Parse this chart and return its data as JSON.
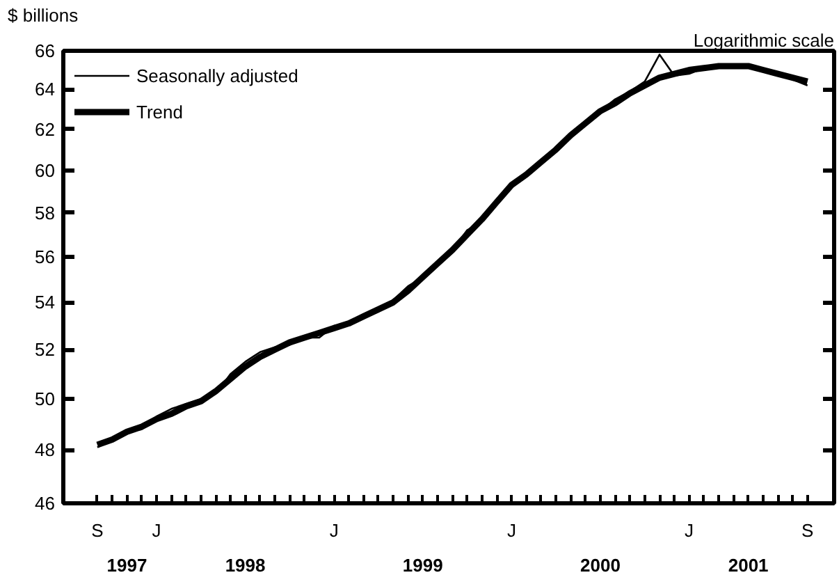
{
  "chart_data": {
    "type": "line",
    "ylabel": "$ billions",
    "annotations": [
      "Logarithmic scale",
      "1997",
      "1998",
      "1999",
      "2000",
      "2001"
    ],
    "categories": [
      "S",
      null,
      null,
      null,
      "J",
      null,
      null,
      null,
      null,
      null,
      null,
      null,
      null,
      null,
      null,
      null,
      "J",
      null,
      null,
      null,
      null,
      null,
      null,
      null,
      null,
      null,
      null,
      null,
      "J",
      null,
      null,
      null,
      null,
      null,
      null,
      null,
      null,
      null,
      null,
      null,
      "J",
      null,
      null,
      null,
      null,
      null,
      null,
      null,
      "S"
    ],
    "series": [
      {
        "name": "Seasonally adjusted",
        "color": "#000000",
        "values": [
          48.1,
          48.4,
          48.7,
          48.8,
          49.3,
          49.6,
          49.8,
          50.0,
          50.2,
          51.0,
          51.5,
          51.9,
          52.1,
          52.2,
          52.5,
          52.5,
          53.0,
          53.1,
          53.4,
          53.6,
          54.1,
          54.7,
          55.1,
          55.7,
          56.3,
          57.2,
          57.6,
          58.4,
          59.4,
          59.7,
          60.4,
          61.1,
          61.8,
          62.2,
          62.9,
          63.5,
          63.9,
          64.4,
          65.8,
          64.7,
          64.8,
          65.1,
          65.2,
          65.1,
          65.3,
          65.0,
          64.8,
          64.5,
          64.2
        ]
      },
      {
        "name": "Trend",
        "color": "#000000",
        "values": [
          48.2,
          48.4,
          48.7,
          48.9,
          49.2,
          49.4,
          49.7,
          49.9,
          50.3,
          50.8,
          51.3,
          51.7,
          52.0,
          52.3,
          52.5,
          52.7,
          52.9,
          53.1,
          53.4,
          53.7,
          54.0,
          54.5,
          55.1,
          55.7,
          56.3,
          57.0,
          57.7,
          58.5,
          59.3,
          59.8,
          60.4,
          61.0,
          61.7,
          62.3,
          62.9,
          63.3,
          63.8,
          64.2,
          64.6,
          64.8,
          65.0,
          65.1,
          65.2,
          65.2,
          65.2,
          65.0,
          64.8,
          64.6,
          64.4
        ]
      }
    ],
    "log": true,
    "ylim": [
      46,
      66
    ],
    "yticks": [
      46,
      48,
      50,
      52,
      54,
      56,
      58,
      60,
      62,
      64,
      66
    ],
    "legend": "top left",
    "grid": false,
    "line_style": "solid",
    "marker": "none"
  }
}
